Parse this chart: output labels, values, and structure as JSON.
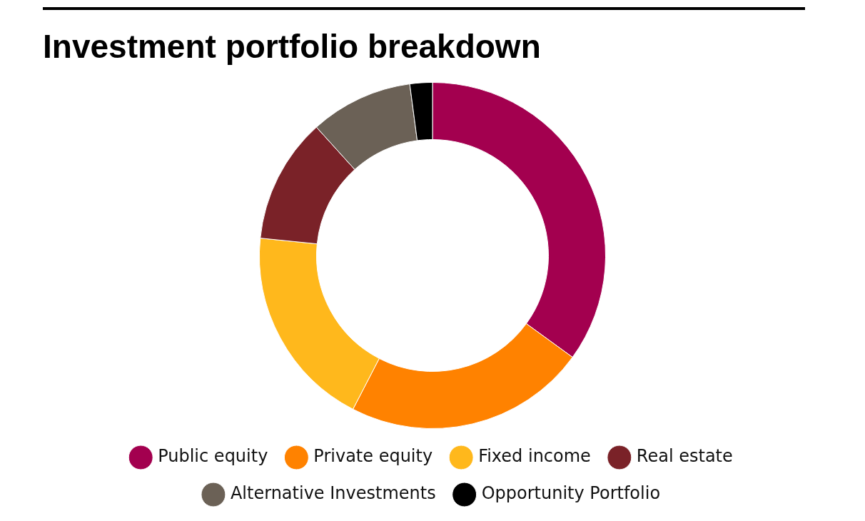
{
  "chart_data": {
    "type": "donut",
    "title": "Investment portfolio breakdown",
    "categories": [
      "Public equity",
      "Private equity",
      "Fixed income",
      "Real estate",
      "Alternative Investments",
      "Opportunity Portfolio"
    ],
    "values": [
      35.0,
      22.6,
      19.0,
      11.7,
      9.6,
      2.1
    ],
    "colors": [
      "#a3004f",
      "#ff8200",
      "#ffb81c",
      "#7a2228",
      "#6b6156",
      "#000000"
    ],
    "legend": "bottom"
  }
}
